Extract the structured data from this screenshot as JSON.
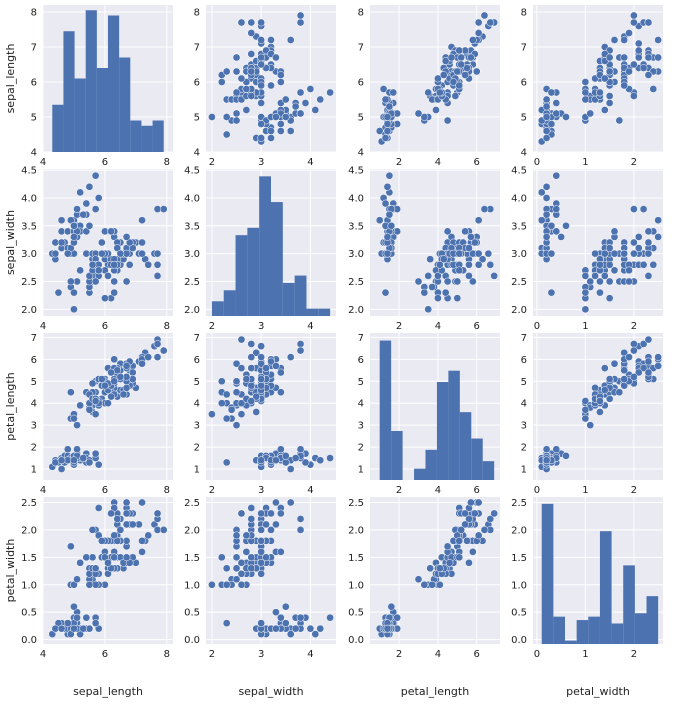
{
  "chart_data": {
    "type": "pairplot",
    "variables": [
      "sepal_length",
      "sepal_width",
      "petal_length",
      "petal_width"
    ],
    "axes": {
      "sepal_length": {
        "label": "sepal_length",
        "lim": [
          4.0,
          8.2
        ],
        "ticks": [
          4,
          6,
          8
        ],
        "yticks": [
          4,
          5,
          6,
          7,
          8
        ]
      },
      "sepal_width": {
        "label": "sepal_width",
        "lim": [
          1.88,
          4.52
        ],
        "ticks": [
          2,
          3,
          4
        ],
        "yticks": [
          2.0,
          2.5,
          3.0,
          3.5,
          4.0,
          4.5
        ]
      },
      "petal_length": {
        "label": "petal_length",
        "lim": [
          0.5,
          7.2
        ],
        "ticks": [
          2,
          4,
          6
        ],
        "yticks": [
          1,
          2,
          3,
          4,
          5,
          6,
          7
        ]
      },
      "petal_width": {
        "label": "petal_width",
        "lim": [
          -0.08,
          2.6
        ],
        "ticks": [
          0,
          1,
          2
        ],
        "yticks": [
          0.0,
          0.5,
          1.0,
          1.5,
          2.0,
          2.5
        ]
      }
    },
    "histograms": {
      "sepal_length": {
        "bins": [
          4.3,
          4.66,
          5.02,
          5.38,
          5.74,
          6.1,
          6.46,
          6.82,
          7.18,
          7.54,
          7.9
        ],
        "counts": [
          9,
          23,
          14,
          27,
          16,
          26,
          18,
          6,
          5,
          6
        ]
      },
      "sepal_width": {
        "bins": [
          2.0,
          2.24,
          2.48,
          2.72,
          2.96,
          3.2,
          3.44,
          3.68,
          3.92,
          4.16,
          4.4
        ],
        "counts": [
          4,
          7,
          22,
          24,
          38,
          31,
          9,
          11,
          2,
          2
        ]
      },
      "petal_length": {
        "bins": [
          1.0,
          1.59,
          2.18,
          2.77,
          3.36,
          3.95,
          4.54,
          5.13,
          5.72,
          6.31,
          6.9
        ],
        "counts": [
          37,
          13,
          0,
          3,
          8,
          26,
          29,
          18,
          11,
          5
        ]
      },
      "petal_width": {
        "bins": [
          0.1,
          0.34,
          0.58,
          0.82,
          1.06,
          1.3,
          1.54,
          1.78,
          2.02,
          2.26,
          2.5
        ],
        "counts": [
          41,
          8,
          1,
          7,
          8,
          33,
          6,
          23,
          9,
          14
        ]
      }
    },
    "hist_ylim": {
      "sepal_length": [
        0,
        28
      ],
      "sepal_width": [
        0,
        40
      ],
      "petal_length": [
        0,
        39
      ],
      "petal_width": [
        0,
        43
      ]
    },
    "points": [
      [
        5.1,
        3.5,
        1.4,
        0.2
      ],
      [
        4.9,
        3.0,
        1.4,
        0.2
      ],
      [
        4.7,
        3.2,
        1.3,
        0.2
      ],
      [
        4.6,
        3.1,
        1.5,
        0.2
      ],
      [
        5.0,
        3.6,
        1.4,
        0.2
      ],
      [
        5.4,
        3.9,
        1.7,
        0.4
      ],
      [
        4.6,
        3.4,
        1.4,
        0.3
      ],
      [
        5.0,
        3.4,
        1.5,
        0.2
      ],
      [
        4.4,
        2.9,
        1.4,
        0.2
      ],
      [
        4.9,
        3.1,
        1.5,
        0.1
      ],
      [
        5.4,
        3.7,
        1.5,
        0.2
      ],
      [
        4.8,
        3.4,
        1.6,
        0.2
      ],
      [
        4.8,
        3.0,
        1.4,
        0.1
      ],
      [
        4.3,
        3.0,
        1.1,
        0.1
      ],
      [
        5.8,
        4.0,
        1.2,
        0.2
      ],
      [
        5.7,
        4.4,
        1.5,
        0.4
      ],
      [
        5.4,
        3.9,
        1.3,
        0.4
      ],
      [
        5.1,
        3.5,
        1.4,
        0.3
      ],
      [
        5.7,
        3.8,
        1.7,
        0.3
      ],
      [
        5.1,
        3.8,
        1.5,
        0.3
      ],
      [
        5.4,
        3.4,
        1.7,
        0.2
      ],
      [
        5.1,
        3.7,
        1.5,
        0.4
      ],
      [
        4.6,
        3.6,
        1.0,
        0.2
      ],
      [
        5.1,
        3.3,
        1.7,
        0.5
      ],
      [
        4.8,
        3.4,
        1.9,
        0.2
      ],
      [
        5.0,
        3.0,
        1.6,
        0.2
      ],
      [
        5.0,
        3.4,
        1.6,
        0.4
      ],
      [
        5.2,
        3.5,
        1.5,
        0.2
      ],
      [
        5.2,
        3.4,
        1.4,
        0.2
      ],
      [
        4.7,
        3.2,
        1.6,
        0.2
      ],
      [
        4.8,
        3.1,
        1.6,
        0.2
      ],
      [
        5.4,
        3.4,
        1.5,
        0.4
      ],
      [
        5.2,
        4.1,
        1.5,
        0.1
      ],
      [
        5.5,
        4.2,
        1.4,
        0.2
      ],
      [
        4.9,
        3.1,
        1.5,
        0.2
      ],
      [
        5.0,
        3.2,
        1.2,
        0.2
      ],
      [
        5.5,
        3.5,
        1.3,
        0.2
      ],
      [
        4.9,
        3.6,
        1.4,
        0.1
      ],
      [
        4.4,
        3.0,
        1.3,
        0.2
      ],
      [
        5.1,
        3.4,
        1.5,
        0.2
      ],
      [
        5.0,
        3.5,
        1.3,
        0.3
      ],
      [
        4.5,
        2.3,
        1.3,
        0.3
      ],
      [
        4.4,
        3.2,
        1.3,
        0.2
      ],
      [
        5.0,
        3.5,
        1.6,
        0.6
      ],
      [
        5.1,
        3.8,
        1.9,
        0.4
      ],
      [
        4.8,
        3.0,
        1.4,
        0.3
      ],
      [
        5.1,
        3.8,
        1.6,
        0.2
      ],
      [
        4.6,
        3.2,
        1.4,
        0.2
      ],
      [
        5.3,
        3.7,
        1.5,
        0.2
      ],
      [
        5.0,
        3.3,
        1.4,
        0.2
      ],
      [
        7.0,
        3.2,
        4.7,
        1.4
      ],
      [
        6.4,
        3.2,
        4.5,
        1.5
      ],
      [
        6.9,
        3.1,
        4.9,
        1.5
      ],
      [
        5.5,
        2.3,
        4.0,
        1.3
      ],
      [
        6.5,
        2.8,
        4.6,
        1.5
      ],
      [
        5.7,
        2.8,
        4.5,
        1.3
      ],
      [
        6.3,
        3.3,
        4.7,
        1.6
      ],
      [
        4.9,
        2.4,
        3.3,
        1.0
      ],
      [
        6.6,
        2.9,
        4.6,
        1.3
      ],
      [
        5.2,
        2.7,
        3.9,
        1.4
      ],
      [
        5.0,
        2.0,
        3.5,
        1.0
      ],
      [
        5.9,
        3.0,
        4.2,
        1.5
      ],
      [
        6.0,
        2.2,
        4.0,
        1.0
      ],
      [
        6.1,
        2.9,
        4.7,
        1.4
      ],
      [
        5.6,
        2.9,
        3.6,
        1.3
      ],
      [
        6.7,
        3.1,
        4.4,
        1.4
      ],
      [
        5.6,
        3.0,
        4.5,
        1.5
      ],
      [
        5.8,
        2.7,
        4.1,
        1.0
      ],
      [
        6.2,
        2.2,
        4.5,
        1.5
      ],
      [
        5.6,
        2.5,
        3.9,
        1.1
      ],
      [
        5.9,
        3.2,
        4.8,
        1.8
      ],
      [
        6.1,
        2.8,
        4.0,
        1.3
      ],
      [
        6.3,
        2.5,
        4.9,
        1.5
      ],
      [
        6.1,
        2.8,
        4.7,
        1.2
      ],
      [
        6.4,
        2.9,
        4.3,
        1.3
      ],
      [
        6.6,
        3.0,
        4.4,
        1.4
      ],
      [
        6.8,
        2.8,
        4.8,
        1.4
      ],
      [
        6.7,
        3.0,
        5.0,
        1.7
      ],
      [
        6.0,
        2.9,
        4.5,
        1.5
      ],
      [
        5.7,
        2.6,
        3.5,
        1.0
      ],
      [
        5.5,
        2.4,
        3.8,
        1.1
      ],
      [
        5.5,
        2.4,
        3.7,
        1.0
      ],
      [
        5.8,
        2.7,
        3.9,
        1.2
      ],
      [
        6.0,
        2.7,
        5.1,
        1.6
      ],
      [
        5.4,
        3.0,
        4.5,
        1.5
      ],
      [
        6.0,
        3.4,
        4.5,
        1.6
      ],
      [
        6.7,
        3.1,
        4.7,
        1.5
      ],
      [
        6.3,
        2.3,
        4.4,
        1.3
      ],
      [
        5.6,
        3.0,
        4.1,
        1.3
      ],
      [
        5.5,
        2.5,
        4.0,
        1.3
      ],
      [
        5.5,
        2.6,
        4.4,
        1.2
      ],
      [
        6.1,
        3.0,
        4.6,
        1.4
      ],
      [
        5.8,
        2.6,
        4.0,
        1.2
      ],
      [
        5.0,
        2.3,
        3.3,
        1.0
      ],
      [
        5.6,
        2.7,
        4.2,
        1.3
      ],
      [
        5.7,
        3.0,
        4.2,
        1.2
      ],
      [
        5.7,
        2.9,
        4.2,
        1.3
      ],
      [
        6.2,
        2.9,
        4.3,
        1.3
      ],
      [
        5.1,
        2.5,
        3.0,
        1.1
      ],
      [
        5.7,
        2.8,
        4.1,
        1.3
      ],
      [
        6.3,
        3.3,
        6.0,
        2.5
      ],
      [
        5.8,
        2.7,
        5.1,
        1.9
      ],
      [
        7.1,
        3.0,
        5.9,
        2.1
      ],
      [
        6.3,
        2.9,
        5.6,
        1.8
      ],
      [
        6.5,
        3.0,
        5.8,
        2.2
      ],
      [
        7.6,
        3.0,
        6.6,
        2.1
      ],
      [
        4.9,
        2.5,
        4.5,
        1.7
      ],
      [
        7.3,
        2.9,
        6.3,
        1.8
      ],
      [
        6.7,
        2.5,
        5.8,
        1.8
      ],
      [
        7.2,
        3.6,
        6.1,
        2.5
      ],
      [
        6.5,
        3.2,
        5.1,
        2.0
      ],
      [
        6.4,
        2.7,
        5.3,
        1.9
      ],
      [
        6.8,
        3.0,
        5.5,
        2.1
      ],
      [
        5.7,
        2.5,
        5.0,
        2.0
      ],
      [
        5.8,
        2.8,
        5.1,
        2.4
      ],
      [
        6.4,
        3.2,
        5.3,
        2.3
      ],
      [
        6.5,
        3.0,
        5.5,
        1.8
      ],
      [
        7.7,
        3.8,
        6.7,
        2.2
      ],
      [
        7.7,
        2.6,
        6.9,
        2.3
      ],
      [
        6.0,
        2.2,
        5.0,
        1.5
      ],
      [
        6.9,
        3.2,
        5.7,
        2.3
      ],
      [
        5.6,
        2.8,
        4.9,
        2.0
      ],
      [
        7.7,
        2.8,
        6.7,
        2.0
      ],
      [
        6.3,
        2.7,
        4.9,
        1.8
      ],
      [
        6.7,
        3.3,
        5.7,
        2.1
      ],
      [
        7.2,
        3.2,
        6.0,
        1.8
      ],
      [
        6.2,
        2.8,
        4.8,
        1.8
      ],
      [
        6.1,
        3.0,
        4.9,
        1.8
      ],
      [
        6.4,
        2.8,
        5.6,
        2.1
      ],
      [
        7.2,
        3.0,
        5.8,
        1.6
      ],
      [
        7.4,
        2.8,
        6.1,
        1.9
      ],
      [
        7.9,
        3.8,
        6.4,
        2.0
      ],
      [
        6.4,
        2.8,
        5.6,
        2.2
      ],
      [
        6.3,
        2.8,
        5.1,
        1.5
      ],
      [
        6.1,
        2.6,
        5.6,
        1.4
      ],
      [
        7.7,
        3.0,
        6.1,
        2.3
      ],
      [
        6.3,
        3.4,
        5.6,
        2.4
      ],
      [
        6.4,
        3.1,
        5.5,
        1.8
      ],
      [
        6.0,
        3.0,
        4.8,
        1.8
      ],
      [
        6.9,
        3.1,
        5.4,
        2.1
      ],
      [
        6.7,
        3.1,
        5.6,
        2.4
      ],
      [
        6.9,
        3.1,
        5.1,
        2.3
      ],
      [
        5.8,
        2.7,
        5.1,
        1.9
      ],
      [
        6.8,
        3.2,
        5.9,
        2.3
      ],
      [
        6.7,
        3.3,
        5.7,
        2.5
      ],
      [
        6.7,
        3.0,
        5.2,
        2.3
      ],
      [
        6.3,
        2.5,
        5.0,
        1.9
      ],
      [
        6.5,
        3.0,
        5.2,
        2.0
      ],
      [
        6.2,
        3.4,
        5.4,
        2.3
      ],
      [
        5.9,
        3.0,
        5.1,
        1.8
      ]
    ],
    "grid": true,
    "colors": {
      "marker": "#4c72b0",
      "panel_bg": "#eaeaf2",
      "grid": "#ffffff",
      "text": "#222222"
    }
  }
}
